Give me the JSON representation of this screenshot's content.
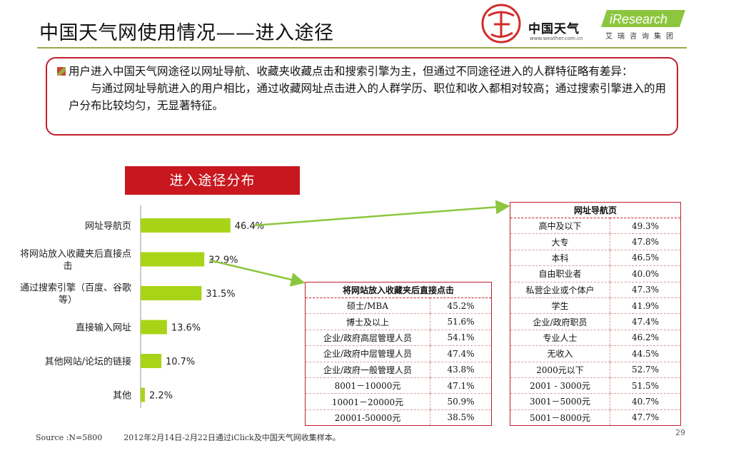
{
  "title": "中国天气网使用情况——进入途径",
  "logos": {
    "weather_brand": "中国天气",
    "weather_url": "www.weather.com.cn",
    "iresearch_mark": "iResearch",
    "iresearch_cn": "艾瑞咨询集团"
  },
  "summary": {
    "para1": "用户进入中国天气网途径以网址导航、收藏夹收藏点击和搜索引擎为主，但通过不同途径进入的人群特征略有差异：",
    "para2": "与通过网址导航进入的用户相比，通过收藏网址点击进入的人群学历、职位和收入都相对较高；通过搜索引擎进入的用户分布比较均匀，无显著特征。"
  },
  "banner": "进入途径分布",
  "chart_data": {
    "type": "bar",
    "orientation": "horizontal",
    "categories": [
      "网址导航页",
      "将网站放入收藏夹后直接点击",
      "通过搜索引擎（百度、谷歌等）",
      "直接输入网址",
      "其他网站/论坛的链接",
      "其他"
    ],
    "category_lines": [
      [
        "网址导航页"
      ],
      [
        "将网站放入收藏夹后直接点",
        "击"
      ],
      [
        "通过搜索引擎（百度、谷歌",
        "等）"
      ],
      [
        "直接输入网址"
      ],
      [
        "其他网站/论坛的链接"
      ],
      [
        "其他"
      ]
    ],
    "values": [
      46.4,
      32.9,
      31.5,
      13.6,
      10.7,
      2.2
    ],
    "value_labels": [
      "46.4%",
      "32.9%",
      "31.5%",
      "13.6%",
      "10.7%",
      "2.2%"
    ],
    "xlim": [
      0,
      100
    ],
    "bar_color": "#a8d418",
    "grid": false
  },
  "table_favorites": {
    "header": "将网站放入收藏夹后直接点击",
    "rows": [
      [
        "硕士/MBA",
        "45.2%"
      ],
      [
        "博士及以上",
        "51.6%"
      ],
      [
        "企业/政府高层管理人员",
        "54.1%"
      ],
      [
        "企业/政府中层管理人员",
        "47.4%"
      ],
      [
        "企业/政府一般管理人员",
        "43.8%"
      ],
      [
        "8001－10000元",
        "47.1%"
      ],
      [
        "10001－20000元",
        "50.9%"
      ],
      [
        "20001-50000元",
        "38.5%"
      ]
    ]
  },
  "table_navigation": {
    "header": "网址导航页",
    "rows": [
      [
        "高中及以下",
        "49.3%"
      ],
      [
        "大专",
        "47.8%"
      ],
      [
        "本科",
        "46.5%"
      ],
      [
        "自由职业者",
        "40.0%"
      ],
      [
        "私营企业或个体户",
        "47.3%"
      ],
      [
        "学生",
        "41.9%"
      ],
      [
        "企业/政府职员",
        "47.4%"
      ],
      [
        "专业人士",
        "46.2%"
      ],
      [
        "无收入",
        "44.5%"
      ],
      [
        "2000元以下",
        "52.7%"
      ],
      [
        "2001 - 3000元",
        "51.5%"
      ],
      [
        "3001－5000元",
        "40.7%"
      ],
      [
        "5001－8000元",
        "47.7%"
      ]
    ]
  },
  "source": {
    "sample": "Source :N=5800",
    "note": "2012年2月14日-2月22日通过iClick及中国天气网收集样本。"
  },
  "page_number": "29",
  "colors": {
    "accent_red": "#c8171e",
    "bar_green": "#a8d418",
    "rule_green": "#9aa64a"
  }
}
